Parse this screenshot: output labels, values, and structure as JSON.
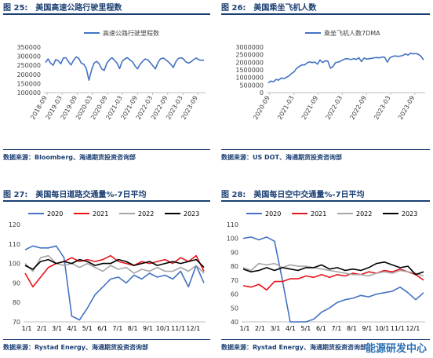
{
  "panels": [
    {
      "fig": "图  25:",
      "title": "美国高速公路行驶里程数",
      "source": "数据来源：Bloomberg、海通期货投资咨询部"
    },
    {
      "fig": "图  26:",
      "title": "美国乘坐飞机人数",
      "source": "数据来源：US DOT、海通期货投资咨询部"
    },
    {
      "fig": "图  27:",
      "title": "美国每日道路交通量%-7日平均",
      "source": "数据来源：Rystad Energy、海通期货投资咨询部"
    },
    {
      "fig": "图  28:",
      "title": "美国每日空中交通量%-7日平均",
      "source": "数据来源：Rystad Energy、海通期货投资咨询部"
    }
  ],
  "watermark": "能源研发中心",
  "colors": {
    "blue": "#4472c4",
    "red": "#e8141b",
    "gray": "#a5a5a5",
    "black": "#000000",
    "header": "#1b3f73"
  },
  "chart_data": [
    {
      "type": "line",
      "legend": [
        "高速公路行驶里程数"
      ],
      "legend_position": "top-center",
      "ylim": [
        100000,
        350000
      ],
      "yticks": [
        "100000",
        "150000",
        "200000",
        "250000",
        "300000",
        "350000"
      ],
      "xticks": [
        "2018-09",
        "2019-03",
        "2019-09",
        "2020-03",
        "2020-09",
        "2021-03",
        "2021-09",
        "2022-03",
        "2022-09",
        "2023-03",
        "2023-09"
      ],
      "series": [
        {
          "x": [
            0,
            1,
            2,
            3,
            4,
            5,
            6,
            7,
            8,
            9,
            10,
            11,
            12,
            13,
            14,
            15,
            16,
            17,
            18,
            19,
            20,
            21,
            22,
            23,
            24,
            25,
            26,
            27,
            28,
            29,
            30,
            31,
            32,
            33,
            34,
            35,
            36,
            37,
            38,
            39,
            40,
            41,
            42,
            43,
            44,
            45,
            46,
            47,
            48,
            49,
            50,
            51,
            52,
            53,
            54,
            55,
            56,
            57,
            58,
            59,
            60,
            61,
            62
          ],
          "y": [
            265000,
            285000,
            262000,
            250000,
            282000,
            275000,
            258000,
            290000,
            292000,
            270000,
            252000,
            278000,
            296000,
            288000,
            262000,
            255000,
            232000,
            168000,
            222000,
            262000,
            272000,
            258000,
            230000,
            222000,
            262000,
            280000,
            292000,
            278000,
            262000,
            232000,
            272000,
            285000,
            292000,
            280000,
            270000,
            248000,
            230000,
            255000,
            272000,
            285000,
            280000,
            265000,
            248000,
            230000,
            265000,
            285000,
            290000,
            282000,
            270000,
            256000,
            238000,
            270000,
            288000,
            292000,
            285000,
            268000,
            262000,
            270000,
            282000,
            290000,
            280000,
            278000,
            278000
          ]
        }
      ],
      "grid": false
    },
    {
      "type": "line",
      "legend": [
        "乘坐飞机人数7DMA"
      ],
      "legend_position": "top-center",
      "ylim": [
        0,
        3000000
      ],
      "yticks": [
        "0",
        "500000",
        "1000000",
        "1500000",
        "2000000",
        "2500000",
        "3000000"
      ],
      "xticks": [
        "2020-09",
        "2021-03",
        "2021-09",
        "2022-03",
        "2022-09",
        "2023-03",
        "2023-09"
      ],
      "series": [
        {
          "x": [
            0,
            1,
            2,
            3,
            4,
            5,
            6,
            7,
            8,
            9,
            10,
            11,
            12,
            13,
            14,
            15,
            16,
            17,
            18,
            19,
            20,
            21,
            22,
            23,
            24,
            25,
            26,
            27,
            28,
            29,
            30,
            31,
            32,
            33,
            34,
            35,
            36,
            37,
            38,
            39,
            40,
            41,
            42,
            43,
            44,
            45,
            46,
            47,
            48,
            49,
            50,
            51,
            52,
            53,
            54,
            55,
            56,
            57,
            58,
            59,
            60
          ],
          "y": [
            650000,
            760000,
            720000,
            870000,
            820000,
            960000,
            920000,
            1010000,
            1100000,
            1260000,
            1380000,
            1610000,
            1720000,
            1830000,
            1820000,
            1960000,
            2030000,
            1980000,
            2010000,
            1880000,
            2150000,
            1980000,
            2100000,
            2080000,
            1610000,
            1720000,
            1980000,
            2010000,
            2080000,
            2180000,
            2240000,
            2220000,
            2180000,
            2240000,
            2190000,
            2300000,
            2050000,
            2280000,
            2210000,
            2240000,
            2260000,
            2300000,
            2310000,
            2290000,
            2350000,
            2320000,
            2010000,
            2300000,
            2380000,
            2420000,
            2390000,
            2410000,
            2450000,
            2550000,
            2480000,
            2600000,
            2550000,
            2580000,
            2520000,
            2400000,
            2150000
          ]
        }
      ],
      "grid": false
    },
    {
      "type": "line",
      "legend": [
        "2020",
        "2021",
        "2022",
        "2023"
      ],
      "legend_position": "top",
      "ylim": [
        70,
        120
      ],
      "yticks": [
        "70",
        "80",
        "90",
        "100",
        "110",
        "120"
      ],
      "xticks": [
        "1/1",
        "2/1",
        "3/1",
        "4/1",
        "5/1",
        "6/1",
        "7/1",
        "8/1",
        "9/1",
        "10/1",
        "11/1",
        "12/1"
      ],
      "x": [
        1,
        1.5,
        2,
        2.5,
        3,
        3.5,
        4,
        4.5,
        5,
        5.5,
        6,
        6.5,
        7,
        7.5,
        8,
        8.5,
        9,
        9.5,
        10,
        10.5,
        11,
        11.5,
        12,
        12.5
      ],
      "series": [
        {
          "name": "2020",
          "values": [
            107,
            109,
            108,
            108,
            109,
            103,
            73,
            71,
            77,
            84,
            88,
            92,
            93,
            90,
            94,
            92,
            95,
            93,
            94,
            92,
            96,
            88,
            99,
            90
          ]
        },
        {
          "name": "2021",
          "values": [
            95,
            88,
            93,
            98,
            100,
            101,
            103,
            101,
            102,
            101,
            102,
            104,
            101,
            100,
            99,
            101,
            100,
            101,
            102,
            100,
            103,
            101,
            104,
            96
          ]
        },
        {
          "name": "2022",
          "values": [
            100,
            96,
            103,
            104,
            100,
            99,
            100,
            98,
            100,
            98,
            96,
            99,
            97,
            98,
            95,
            97,
            96,
            98,
            96,
            96,
            98,
            96,
            99,
            95
          ]
        },
        {
          "name": "2023",
          "values": [
            99,
            97,
            101,
            102,
            100,
            101,
            100,
            102,
            101,
            99,
            100,
            100,
            102,
            101,
            99,
            100,
            101,
            99,
            100,
            101,
            100,
            101,
            102,
            98
          ]
        }
      ],
      "grid": false
    },
    {
      "type": "line",
      "legend": [
        "2020",
        "2021",
        "2022",
        "2023"
      ],
      "legend_position": "top",
      "ylim": [
        40,
        110
      ],
      "yticks": [
        "40",
        "50",
        "60",
        "70",
        "80",
        "90",
        "100",
        "110"
      ],
      "xticks": [
        "1/1",
        "2/1",
        "3/1",
        "4/1",
        "5/1",
        "6/1",
        "7/1",
        "8/1",
        "9/1",
        "10/1",
        "11/1",
        "12/1"
      ],
      "x": [
        1,
        1.5,
        2,
        2.5,
        3,
        3.5,
        4,
        4.5,
        5,
        5.5,
        6,
        6.5,
        7,
        7.5,
        8,
        8.5,
        9,
        9.5,
        10,
        10.5,
        11,
        11.5,
        12,
        12.5
      ],
      "series": [
        {
          "name": "2020",
          "values": [
            100,
            101,
            99,
            101,
            98,
            70,
            40,
            40,
            40,
            42,
            47,
            50,
            54,
            56,
            57,
            59,
            58,
            60,
            61,
            62,
            65,
            61,
            56,
            61
          ]
        },
        {
          "name": "2021",
          "values": [
            66,
            65,
            67,
            63,
            69,
            69,
            71,
            71,
            73,
            72,
            74,
            72,
            74,
            73,
            75,
            74,
            76,
            75,
            77,
            76,
            78,
            76,
            74,
            70
          ]
        },
        {
          "name": "2022",
          "values": [
            79,
            77,
            82,
            81,
            82,
            79,
            81,
            80,
            80,
            79,
            78,
            77,
            76,
            75,
            74,
            74,
            73,
            75,
            76,
            75,
            77,
            76,
            75,
            73
          ]
        },
        {
          "name": "2023",
          "values": [
            78,
            76,
            77,
            79,
            77,
            79,
            78,
            77,
            79,
            79,
            81,
            78,
            79,
            77,
            78,
            77,
            79,
            82,
            83,
            81,
            79,
            80,
            74,
            76
          ]
        }
      ],
      "grid": false
    }
  ]
}
